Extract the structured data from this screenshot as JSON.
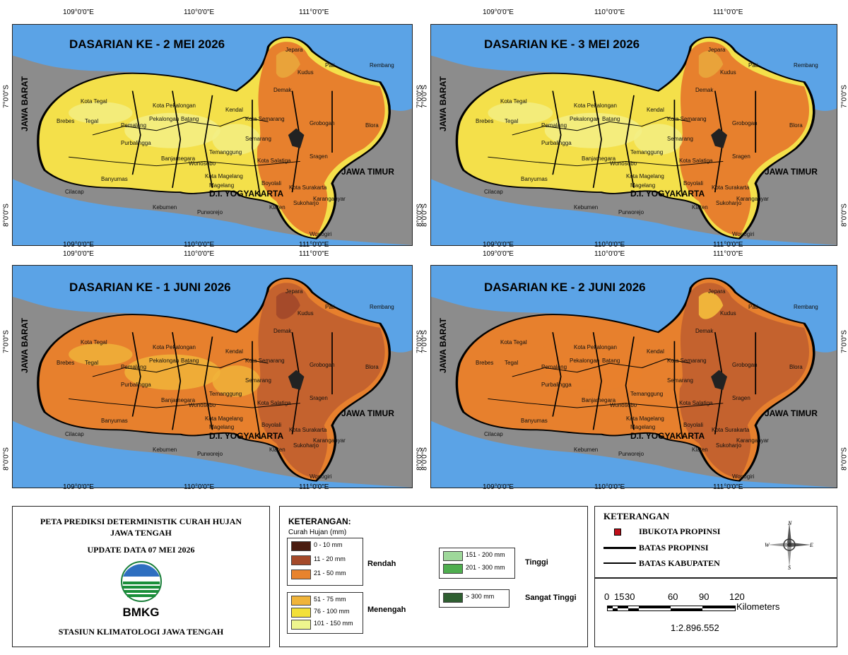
{
  "panels": [
    {
      "title": "DASARIAN KE - 2 MEI 2026"
    },
    {
      "title": "DASARIAN KE - 3 MEI 2026"
    },
    {
      "title": "DASARIAN KE - 1 JUNI 2026"
    },
    {
      "title": "DASARIAN KE - 2 JUNI 2026"
    }
  ],
  "coords": {
    "lon": [
      "109°0'0\"E",
      "110°0'0\"E",
      "111°0'0\"E"
    ],
    "lat": [
      "7°0'0\"S",
      "8°0'0\"S"
    ]
  },
  "regions": {
    "jawa_barat": "JAWA BARAT",
    "jawa_timur": "JAWA TIMUR",
    "diy": "D.I. YOGYAKARTA"
  },
  "districts": [
    "Jepara",
    "Kudus",
    "Pati",
    "Rembang",
    "Demak",
    "Kendal",
    "Kota Semarang",
    "Semarang",
    "Grobogan",
    "Blora",
    "Kota Tegal",
    "Kota Pekalongan",
    "Brebes",
    "Tegal",
    "Pemalang",
    "Pekalongan",
    "Batang",
    "Purbalingga",
    "Banjarnegara",
    "Temanggung",
    "Wonosobo",
    "Kota Salatiga",
    "Sragen",
    "Cilacap",
    "Banyumas",
    "Kota Magelang",
    "Magelang",
    "Boyolali",
    "Kota Surakarta",
    "Karanganyar",
    "Sukoharjo",
    "Klaten",
    "Kebumen",
    "Purworejo",
    "Wonogiri"
  ],
  "title_box": {
    "line1": "PETA PREDIKSI DETERMINISTIK CURAH HUJAN",
    "line2": "JAWA TENGAH",
    "update": "UPDATE DATA 07 MEI 2026",
    "logo_text": "BMKG",
    "station": "STASIUN KLIMATOLOGI JAWA TENGAH"
  },
  "legend": {
    "heading": "KETERANGAN:",
    "subheading": "Curah Hujan (mm)",
    "groups": [
      {
        "name": "Rendah",
        "items": [
          {
            "label": "0 - 10 mm",
            "color": "#4a1c10"
          },
          {
            "label": "11 - 20 mm",
            "color": "#a54a2a"
          },
          {
            "label": "21 - 50 mm",
            "color": "#e8832d"
          }
        ]
      },
      {
        "name": "Menengah",
        "items": [
          {
            "label": "51 - 75 mm",
            "color": "#f0b43a"
          },
          {
            "label": "76 - 100 mm",
            "color": "#f2e03a"
          },
          {
            "label": "101 - 150 mm",
            "color": "#eef58e"
          }
        ]
      },
      {
        "name": "Tinggi",
        "items": [
          {
            "label": "151 - 200 mm",
            "color": "#9ed89a"
          },
          {
            "label": "201 - 300 mm",
            "color": "#4fae4f"
          }
        ]
      },
      {
        "name": "Sangat Tinggi",
        "items": [
          {
            "label": "> 300 mm",
            "color": "#2e5e30"
          }
        ]
      }
    ]
  },
  "keterangan": {
    "heading": "KETERANGAN",
    "ibukota": "IBUKOTA PROPINSI",
    "batas_propinsi": "BATAS PROPINSI",
    "batas_kabupaten": "BATAS KABUPATEN",
    "scale_ticks": [
      "0",
      "15",
      "30",
      "60",
      "90",
      "120"
    ],
    "scale_unit": "Kilometers",
    "scale_ratio": "1:2.896.552",
    "compass": {
      "n": "N",
      "s": "S",
      "e": "E",
      "w": "W"
    }
  },
  "colors": {
    "sea": "#5ba3e6",
    "land_gray": "#8c8c8c"
  }
}
